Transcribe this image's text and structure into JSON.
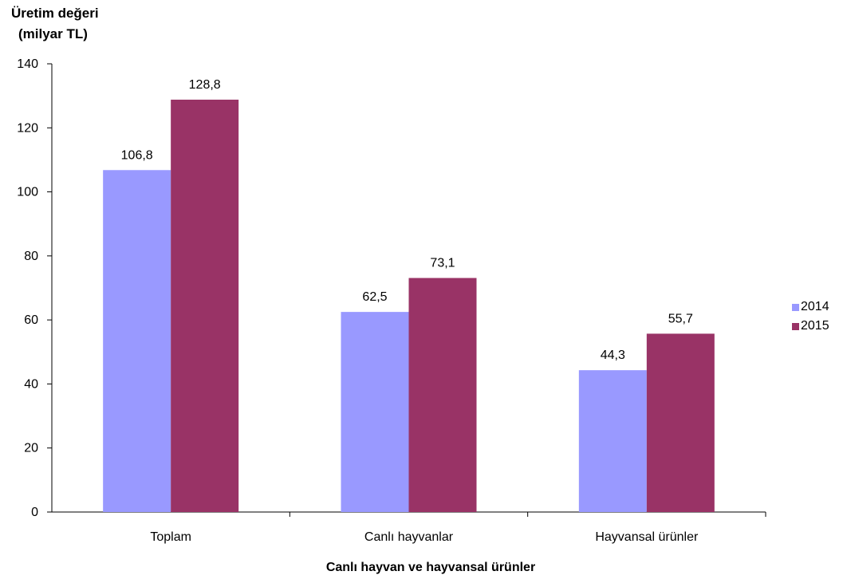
{
  "chart_data": {
    "type": "bar",
    "ylabel_line1": "Üretim değeri",
    "ylabel_line2": "(milyar TL)",
    "xlabel": "Canlı hayvan ve hayvansal ürünler",
    "categories": [
      "Toplam",
      "Canlı hayvanlar",
      "Hayvansal ürünler"
    ],
    "series": [
      {
        "name": "2014",
        "color": "#9999ff",
        "values": [
          106.8,
          62.5,
          44.3
        ],
        "labels": [
          "106,8",
          "62,5",
          "44,3"
        ]
      },
      {
        "name": "2015",
        "color": "#993366",
        "values": [
          128.8,
          73.1,
          55.7
        ],
        "labels": [
          "128,8",
          "73,1",
          "55,7"
        ]
      }
    ],
    "ylim": [
      0,
      140
    ],
    "yticks": [
      0,
      20,
      40,
      60,
      80,
      100,
      120,
      140
    ],
    "grid": false,
    "legend_position": "right"
  }
}
